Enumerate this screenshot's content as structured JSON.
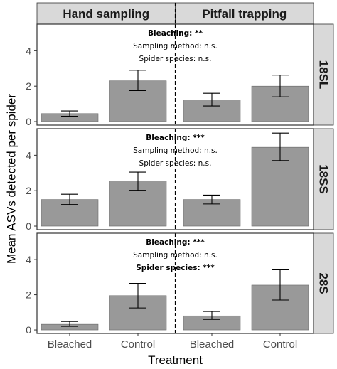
{
  "chart_data": {
    "type": "bar",
    "xlabel": "Treatment",
    "ylabel": "Mean ASVs detected per spider",
    "columns": [
      "Hand sampling",
      "Pitfall trapping"
    ],
    "categories": [
      "Bleached",
      "Control"
    ],
    "y_ticks": [
      "0",
      "2",
      "4"
    ],
    "ylim": [
      -0.2,
      5.5
    ],
    "colors": {
      "bar": "#999999",
      "bar_edge": "#666666",
      "strip": "#d9d9d9",
      "panel_border": "#333333"
    },
    "panels": [
      {
        "row_label": "18SL",
        "annotations": [
          {
            "text": "Bleaching: **",
            "bold": true
          },
          {
            "text": "Sampling method: n.s.",
            "bold": false
          },
          {
            "text": "Spider species: n.s.",
            "bold": false
          }
        ],
        "groups": [
          {
            "column": "Hand sampling",
            "values": [
              0.45,
              2.3
            ],
            "error_low": [
              0.3,
              1.75
            ],
            "error_high": [
              0.6,
              2.9
            ]
          },
          {
            "column": "Pitfall trapping",
            "values": [
              1.22,
              2.0
            ],
            "error_low": [
              0.88,
              1.4
            ],
            "error_high": [
              1.6,
              2.62
            ]
          }
        ]
      },
      {
        "row_label": "18SS",
        "annotations": [
          {
            "text": "Bleaching: ***",
            "bold": true
          },
          {
            "text": "Sampling method: n.s.",
            "bold": false
          },
          {
            "text": "Spider species: n.s.",
            "bold": false
          }
        ],
        "groups": [
          {
            "column": "Hand sampling",
            "values": [
              1.5,
              2.55
            ],
            "error_low": [
              1.22,
              2.02
            ],
            "error_high": [
              1.8,
              3.05
            ]
          },
          {
            "column": "Pitfall trapping",
            "values": [
              1.5,
              4.45
            ],
            "error_low": [
              1.25,
              3.7
            ],
            "error_high": [
              1.75,
              5.25
            ]
          }
        ]
      },
      {
        "row_label": "28S",
        "annotations": [
          {
            "text": "Bleaching: ***",
            "bold": true
          },
          {
            "text": "Sampling method: n.s.",
            "bold": false
          },
          {
            "text": "Spider species: ***",
            "bold": true
          }
        ],
        "groups": [
          {
            "column": "Hand sampling",
            "values": [
              0.32,
              1.95
            ],
            "error_low": [
              0.2,
              1.25
            ],
            "error_high": [
              0.48,
              2.65
            ]
          },
          {
            "column": "Pitfall trapping",
            "values": [
              0.8,
              2.55
            ],
            "error_low": [
              0.6,
              1.7
            ],
            "error_high": [
              1.05,
              3.42
            ]
          }
        ]
      }
    ]
  }
}
